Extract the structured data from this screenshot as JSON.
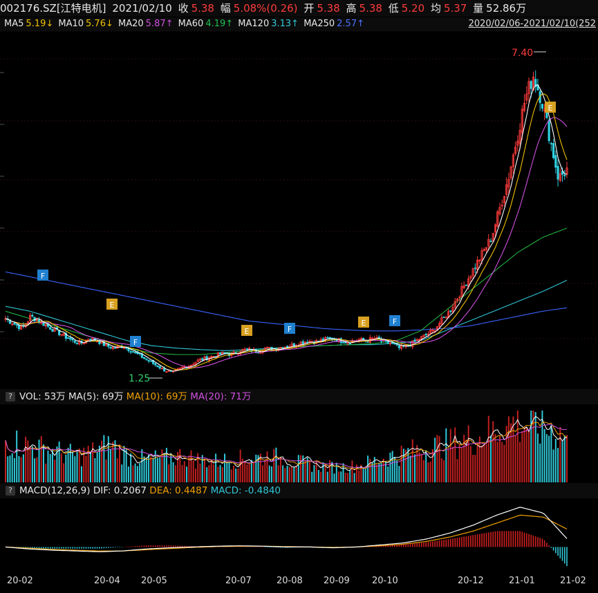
{
  "header": {
    "code": "002176.SZ[江特电机]",
    "date": "2021/02/10",
    "close_label": "收",
    "close": "5.38",
    "chg_label": "幅",
    "chg": "5.08%(0.26)",
    "open_label": "开",
    "open": "5.38",
    "high_label": "高",
    "high": "5.38",
    "low_label": "低",
    "low": "5.20",
    "avg_label": "均",
    "avg": "5.37",
    "vol_label": "量",
    "vol": "52.86万"
  },
  "ma": {
    "ma5": "MA5",
    "ma5_val": "5.19↓",
    "ma10": "MA10",
    "ma10_val": "5.76↓",
    "ma20": "MA20",
    "ma20_val": "5.87↑",
    "ma60": "MA60",
    "ma60_val": "4.19↑",
    "ma120": "MA120",
    "ma120_val": "3.13↑",
    "ma250": "MA250",
    "ma250_val": "2.57↑",
    "range": "2020/02/06-2021/02/10(252"
  },
  "volume_panel": {
    "q": "?",
    "vol": "VOL: 53万",
    "ma5": "MA(5): 69万",
    "ma10": "MA(10): 69万",
    "ma20": "MA(20): 71万"
  },
  "macd_panel": {
    "q": "?",
    "title": "MACD(12,26,9)",
    "dif": "DIF: 0.2067",
    "dea": "DEA: 0.4487",
    "macd": "MACD: -0.4840"
  },
  "colors": {
    "ma5": "#ffffff",
    "ma10": "#f0c000",
    "ma20": "#d050e0",
    "ma60": "#20b040",
    "ma120": "#30c8d8",
    "ma250": "#3a64ff",
    "up": "#ff3b3b",
    "down": "#30d0e0"
  },
  "chart_data": {
    "type": "candlestick",
    "price_annotations": {
      "high": "7.40",
      "low": "1.25"
    },
    "event_markers": [
      "F",
      "E",
      "F",
      "E",
      "F",
      "E",
      "F",
      "E"
    ],
    "x_ticks": [
      "20-02",
      "20-04",
      "20-05",
      "20-07",
      "20-08",
      "20-09",
      "20-10",
      "20-12",
      "21-01",
      "21-02"
    ],
    "price_path": [
      2.35,
      2.25,
      2.15,
      2.4,
      2.3,
      2.2,
      2.1,
      2.0,
      1.9,
      1.85,
      1.95,
      1.9,
      1.8,
      1.75,
      1.8,
      1.7,
      1.6,
      1.5,
      1.4,
      1.3,
      1.25,
      1.35,
      1.4,
      1.5,
      1.55,
      1.6,
      1.65,
      1.62,
      1.7,
      1.72,
      1.68,
      1.75,
      1.72,
      1.78,
      1.8,
      1.85,
      1.9,
      1.88,
      1.92,
      1.95,
      1.9,
      1.88,
      1.92,
      1.9,
      1.95,
      1.88,
      1.85,
      1.75,
      1.8,
      1.9,
      2.0,
      2.1,
      2.3,
      2.5,
      2.8,
      3.1,
      3.4,
      3.7,
      4.0,
      4.6,
      5.2,
      6.0,
      6.8,
      7.3,
      6.8,
      6.0,
      5.2,
      5.38
    ],
    "ma250_path": [
      3.3,
      3.2,
      3.1,
      3.0,
      2.9,
      2.8,
      2.7,
      2.6,
      2.5,
      2.4,
      2.3,
      2.25,
      2.2,
      2.15,
      2.12,
      2.1,
      2.1,
      2.12,
      2.15,
      2.2,
      2.3,
      2.4,
      2.5,
      2.57
    ],
    "ma120_path": [
      2.6,
      2.5,
      2.35,
      2.2,
      2.05,
      1.9,
      1.8,
      1.75,
      1.72,
      1.7,
      1.72,
      1.75,
      1.78,
      1.8,
      1.82,
      1.82,
      1.85,
      1.9,
      2.1,
      2.3,
      2.5,
      2.7,
      2.9,
      3.13
    ],
    "ma60_path": [
      2.5,
      2.35,
      2.2,
      2.05,
      1.9,
      1.75,
      1.65,
      1.62,
      1.62,
      1.66,
      1.7,
      1.74,
      1.78,
      1.8,
      1.82,
      1.84,
      1.9,
      2.1,
      2.5,
      2.9,
      3.3,
      3.7,
      4.0,
      4.19
    ],
    "volume_path": [
      0.55,
      0.5,
      0.45,
      0.4,
      0.35,
      0.4,
      0.5,
      0.35,
      0.3,
      0.32,
      0.35,
      0.3,
      0.28,
      0.3,
      0.32,
      0.35,
      0.3,
      0.25,
      0.22,
      0.2,
      0.22,
      0.28,
      0.35,
      0.4,
      0.45,
      0.5,
      0.55,
      0.6,
      0.7,
      0.8,
      0.75,
      0.7,
      0.6
    ],
    "macd_dif_path": [
      0.0,
      -0.05,
      -0.08,
      -0.1,
      -0.12,
      -0.1,
      -0.05,
      -0.02,
      0.0,
      0.02,
      0.03,
      0.02,
      0.0,
      0.0,
      -0.02,
      0.0,
      0.05,
      0.1,
      0.2,
      0.35,
      0.55,
      0.8,
      1.0,
      0.85,
      0.21
    ],
    "macd_dea_path": [
      0.0,
      -0.03,
      -0.06,
      -0.08,
      -0.1,
      -0.1,
      -0.07,
      -0.04,
      -0.01,
      0.01,
      0.02,
      0.02,
      0.01,
      0.0,
      -0.01,
      0.0,
      0.03,
      0.07,
      0.14,
      0.25,
      0.4,
      0.6,
      0.8,
      0.75,
      0.45
    ]
  }
}
